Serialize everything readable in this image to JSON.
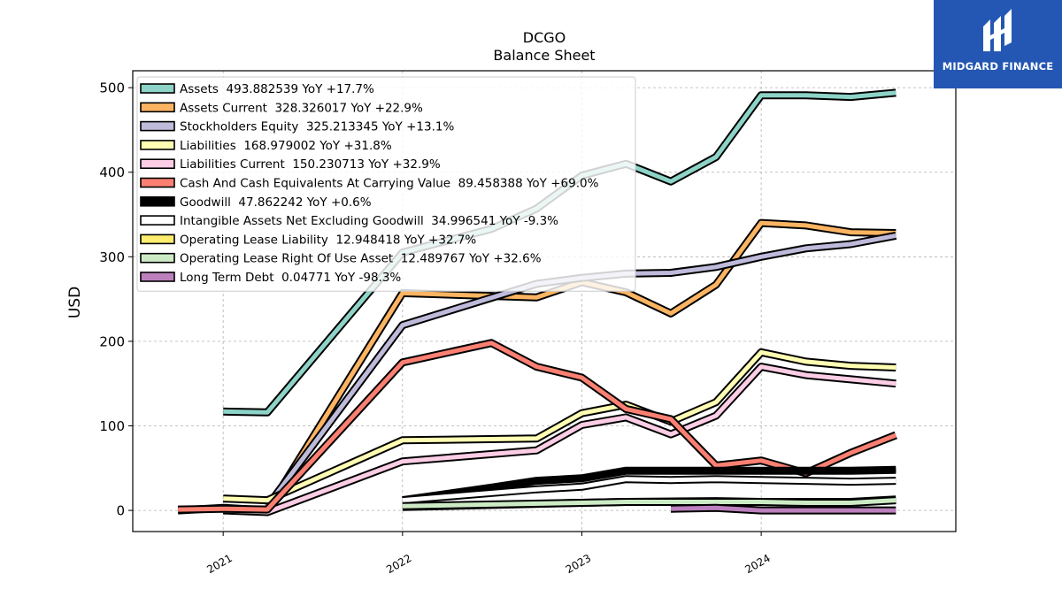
{
  "brand": {
    "name": "MIDGARD FINANCE",
    "bg": "#2457b3"
  },
  "chart_data": {
    "type": "line",
    "title": "DCGO",
    "subtitle": "Balance  Sheet",
    "xlabel": "",
    "ylabel": "USD",
    "ylim": [
      -25,
      520
    ],
    "xlim": [
      "2020-07-01",
      "2025-01-31"
    ],
    "x_ticks": [
      "2021-01-01",
      "2022-01-01",
      "2023-01-01",
      "2024-01-01"
    ],
    "x_tick_labels": [
      "2021",
      "2022",
      "2023",
      "2024"
    ],
    "y_ticks": [
      0,
      100,
      200,
      300,
      400,
      500
    ],
    "grid": true,
    "legend_position": "top-left",
    "series": [
      {
        "name": "Assets",
        "legend": "Assets  493.882539 YoY +17.7%",
        "color": "#8dd3c7",
        "points": [
          [
            "2021-01-01",
            117
          ],
          [
            "2021-04-01",
            116
          ],
          [
            "2022-01-01",
            305
          ],
          [
            "2022-07-01",
            333
          ],
          [
            "2022-10-01",
            357
          ],
          [
            "2023-01-01",
            396
          ],
          [
            "2023-04-01",
            410
          ],
          [
            "2023-07-01",
            389
          ],
          [
            "2023-10-01",
            418
          ],
          [
            "2024-01-01",
            491
          ],
          [
            "2024-04-01",
            491
          ],
          [
            "2024-07-01",
            489
          ],
          [
            "2024-10-01",
            494
          ]
        ]
      },
      {
        "name": "Assets Current",
        "legend": "Assets Current  328.326017 YoY +22.9%",
        "color": "#fdb462",
        "points": [
          [
            "2020-10-01",
            0
          ],
          [
            "2021-01-01",
            3
          ],
          [
            "2021-04-01",
            0
          ],
          [
            "2022-01-01",
            257
          ],
          [
            "2022-10-01",
            252
          ],
          [
            "2023-01-01",
            270
          ],
          [
            "2023-04-01",
            258
          ],
          [
            "2023-07-01",
            233
          ],
          [
            "2023-10-01",
            267
          ],
          [
            "2024-01-01",
            340
          ],
          [
            "2024-04-01",
            337
          ],
          [
            "2024-07-01",
            329
          ],
          [
            "2024-10-01",
            328
          ]
        ]
      },
      {
        "name": "Stockholders Equity",
        "legend": "Stockholders Equity  325.213345 YoY +13.1%",
        "color": "#bebada",
        "points": [
          [
            "2021-04-01",
            5
          ],
          [
            "2022-01-01",
            219
          ],
          [
            "2022-10-01",
            268
          ],
          [
            "2023-01-01",
            275
          ],
          [
            "2023-04-01",
            280
          ],
          [
            "2023-07-01",
            281
          ],
          [
            "2023-10-01",
            288
          ],
          [
            "2024-01-01",
            300
          ],
          [
            "2024-04-01",
            310
          ],
          [
            "2024-07-01",
            315
          ],
          [
            "2024-10-01",
            325
          ]
        ]
      },
      {
        "name": "Liabilities",
        "legend": "Liabilities  168.979002 YoY +31.8%",
        "color": "#ffffb3",
        "points": [
          [
            "2021-01-01",
            14
          ],
          [
            "2021-04-01",
            12
          ],
          [
            "2022-01-01",
            83
          ],
          [
            "2022-10-01",
            85
          ],
          [
            "2023-01-01",
            115
          ],
          [
            "2023-04-01",
            125
          ],
          [
            "2023-07-01",
            105
          ],
          [
            "2023-10-01",
            128
          ],
          [
            "2024-01-01",
            187
          ],
          [
            "2024-04-01",
            176
          ],
          [
            "2024-07-01",
            171
          ],
          [
            "2024-10-01",
            169
          ]
        ]
      },
      {
        "name": "Liabilities Current",
        "legend": "Liabilities Current  150.230713 YoY +32.9%",
        "color": "#fccde5",
        "points": [
          [
            "2021-01-01",
            0
          ],
          [
            "2021-04-01",
            -2
          ],
          [
            "2022-01-01",
            58
          ],
          [
            "2022-10-01",
            71
          ],
          [
            "2023-01-01",
            101
          ],
          [
            "2023-04-01",
            110
          ],
          [
            "2023-07-01",
            90
          ],
          [
            "2023-10-01",
            112
          ],
          [
            "2024-01-01",
            170
          ],
          [
            "2024-04-01",
            160
          ],
          [
            "2024-07-01",
            155
          ],
          [
            "2024-10-01",
            150
          ]
        ]
      },
      {
        "name": "Cash And Cash Equivalents At Carrying Value",
        "legend": "Cash And Cash Equivalents At Carrying Value  89.458388 YoY +69.0%",
        "color": "#fb8072",
        "points": [
          [
            "2020-10-01",
            1
          ],
          [
            "2021-01-01",
            2
          ],
          [
            "2021-04-01",
            1
          ],
          [
            "2022-01-01",
            175
          ],
          [
            "2022-07-01",
            198
          ],
          [
            "2022-10-01",
            170
          ],
          [
            "2023-01-01",
            157
          ],
          [
            "2023-04-01",
            120
          ],
          [
            "2023-07-01",
            108
          ],
          [
            "2023-10-01",
            53
          ],
          [
            "2024-01-01",
            59
          ],
          [
            "2024-04-01",
            44
          ],
          [
            "2024-07-01",
            68
          ],
          [
            "2024-10-01",
            89
          ]
        ]
      },
      {
        "name": "Goodwill",
        "legend": "Goodwill  47.862242 YoY +0.6%",
        "color": "#000000",
        "points": [
          [
            "2022-01-01",
            12
          ],
          [
            "2022-07-01",
            27
          ],
          [
            "2022-10-01",
            35
          ],
          [
            "2023-01-01",
            38
          ],
          [
            "2023-04-01",
            47
          ],
          [
            "2023-07-01",
            47
          ],
          [
            "2023-10-01",
            47
          ],
          [
            "2024-01-01",
            47
          ],
          [
            "2024-04-01",
            47
          ],
          [
            "2024-07-01",
            47
          ],
          [
            "2024-10-01",
            48
          ]
        ]
      },
      {
        "name": "Intangible Assets Net Excluding Goodwill",
        "legend": "Intangible Assets Net Excluding Goodwill  34.996541 YoY -9.3%",
        "color": "#ffffff",
        "points": [
          [
            "2022-01-01",
            12
          ],
          [
            "2022-10-01",
            25
          ],
          [
            "2023-01-01",
            28
          ],
          [
            "2023-04-01",
            37
          ],
          [
            "2023-07-01",
            36
          ],
          [
            "2023-10-01",
            37
          ],
          [
            "2024-01-01",
            36
          ],
          [
            "2024-04-01",
            35
          ],
          [
            "2024-07-01",
            34
          ],
          [
            "2024-10-01",
            35
          ]
        ]
      },
      {
        "name": "Operating Lease Liability",
        "legend": "Operating Lease Liability  12.948418 YoY +32.7%",
        "color": "#ffed6f",
        "points": [
          [
            "2022-01-01",
            4
          ],
          [
            "2023-01-01",
            9
          ],
          [
            "2023-04-01",
            10
          ],
          [
            "2023-10-01",
            11
          ],
          [
            "2024-01-01",
            10
          ],
          [
            "2024-04-01",
            10
          ],
          [
            "2024-07-01",
            10
          ],
          [
            "2024-10-01",
            13
          ]
        ]
      },
      {
        "name": "Operating Lease Right Of Use Asset",
        "legend": "Operating Lease Right Of Use Asset  12.489767 YoY +32.6%",
        "color": "#ccebc5",
        "points": [
          [
            "2022-01-01",
            5
          ],
          [
            "2023-01-01",
            9
          ],
          [
            "2023-04-01",
            10
          ],
          [
            "2023-10-01",
            10
          ],
          [
            "2024-01-01",
            10
          ],
          [
            "2024-04-01",
            9
          ],
          [
            "2024-07-01",
            9
          ],
          [
            "2024-10-01",
            12
          ]
        ]
      },
      {
        "name": "Long Term Debt",
        "legend": "Long Term Debt  0.04771 YoY -98.3%",
        "color": "#bc80bd",
        "points": [
          [
            "2023-07-01",
            2
          ],
          [
            "2023-10-01",
            3
          ],
          [
            "2024-01-01",
            0
          ],
          [
            "2024-04-01",
            0
          ],
          [
            "2024-07-01",
            0
          ],
          [
            "2024-10-01",
            0
          ]
        ]
      }
    ]
  }
}
